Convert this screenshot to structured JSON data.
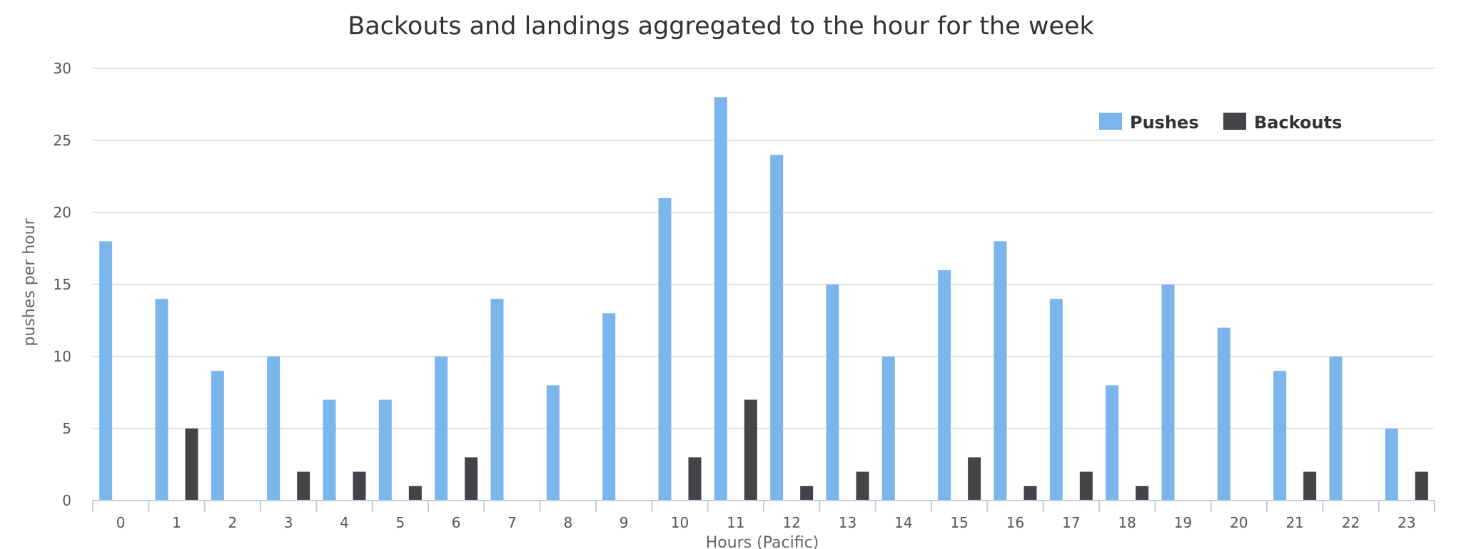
{
  "chart_data": {
    "type": "bar",
    "title": "Backouts and landings aggregated to the hour for the week",
    "xlabel": "Hours (Pacific)",
    "ylabel": "pushes per hour",
    "categories": [
      "0",
      "1",
      "2",
      "3",
      "4",
      "5",
      "6",
      "7",
      "8",
      "9",
      "10",
      "11",
      "12",
      "13",
      "14",
      "15",
      "16",
      "17",
      "18",
      "19",
      "20",
      "21",
      "22",
      "23"
    ],
    "yticks": [
      "0",
      "5",
      "10",
      "15",
      "20",
      "25",
      "30"
    ],
    "ylim": [
      0,
      30
    ],
    "grid": true,
    "legend_position": "top-right",
    "series": [
      {
        "name": "Pushes",
        "color": "#7cb5ec",
        "values": [
          18,
          14,
          9,
          10,
          7,
          7,
          10,
          14,
          8,
          13,
          21,
          28,
          24,
          15,
          10,
          16,
          18,
          14,
          8,
          15,
          12,
          9,
          10,
          5
        ]
      },
      {
        "name": "Backouts",
        "color": "#434348",
        "values": [
          0,
          5,
          0,
          2,
          2,
          1,
          3,
          0,
          0,
          0,
          3,
          7,
          1,
          2,
          0,
          3,
          1,
          2,
          1,
          0,
          0,
          2,
          0,
          2
        ]
      }
    ]
  }
}
